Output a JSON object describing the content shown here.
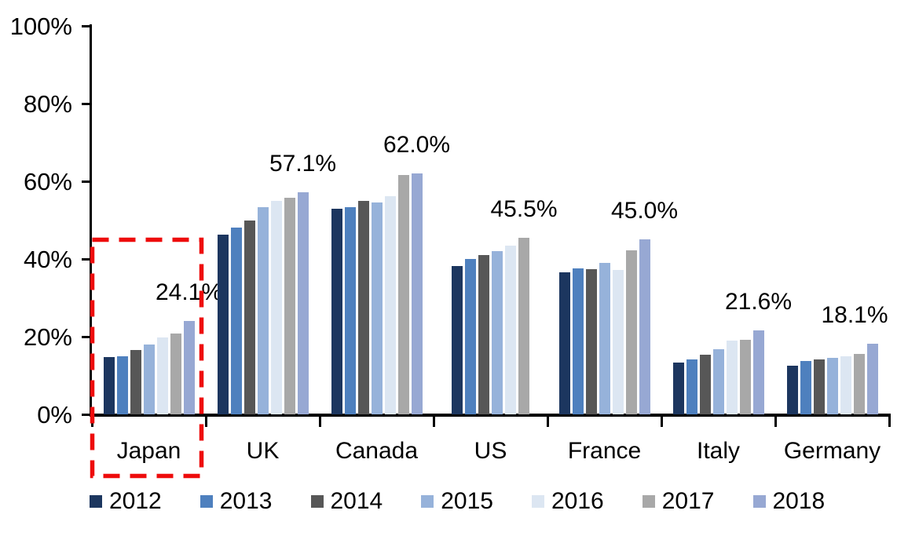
{
  "chart_data": {
    "type": "bar",
    "title": "",
    "categories": [
      "Japan",
      "UK",
      "Canada",
      "US",
      "France",
      "Italy",
      "Germany"
    ],
    "series": [
      {
        "name": "2012",
        "color": "#1C365F",
        "values": [
          14.8,
          46.3,
          53.0,
          38.2,
          36.5,
          13.3,
          12.5
        ]
      },
      {
        "name": "2013",
        "color": "#4E80BE",
        "values": [
          14.9,
          48.0,
          53.4,
          40.1,
          37.5,
          14.1,
          13.8
        ]
      },
      {
        "name": "2014",
        "color": "#575757",
        "values": [
          16.6,
          50.0,
          54.9,
          41.1,
          37.4,
          15.3,
          14.2
        ]
      },
      {
        "name": "2015",
        "color": "#96B2DA",
        "values": [
          17.9,
          53.4,
          54.5,
          42.0,
          39.0,
          16.7,
          14.6
        ]
      },
      {
        "name": "2016",
        "color": "#DCE6F2",
        "values": [
          19.8,
          54.9,
          56.1,
          43.5,
          37.2,
          18.9,
          15.0
        ]
      },
      {
        "name": "2017",
        "color": "#A8A8A8",
        "values": [
          20.9,
          55.8,
          61.6,
          45.5,
          42.3,
          19.1,
          15.6
        ]
      },
      {
        "name": "2018",
        "color": "#97A8D3",
        "values": [
          24.1,
          57.1,
          62.0,
          null,
          45.0,
          21.6,
          18.1
        ]
      }
    ],
    "group_data_labels": [
      "24.1%",
      "57.1%",
      "62.0%",
      "45.5%",
      "45.0%",
      "21.6%",
      "18.1%"
    ],
    "y_ticks": [
      {
        "value": 0,
        "label": "0%"
      },
      {
        "value": 20,
        "label": "20%"
      },
      {
        "value": 40,
        "label": "40%"
      },
      {
        "value": 60,
        "label": "60%"
      },
      {
        "value": 80,
        "label": "80%"
      },
      {
        "value": 100,
        "label": "100%"
      }
    ],
    "ylim": [
      0,
      100
    ],
    "xlabel": "",
    "ylabel": "",
    "grid": false,
    "legend_position": "bottom",
    "annotations": {
      "highlighted_category": "Japan",
      "highlight_style": "red dashed rectangle around Japan group and its axis label"
    }
  },
  "colors": {
    "background": "#FFFFFF",
    "axis": "#000000",
    "text": "#000000",
    "highlight": "#EE0C0C"
  }
}
